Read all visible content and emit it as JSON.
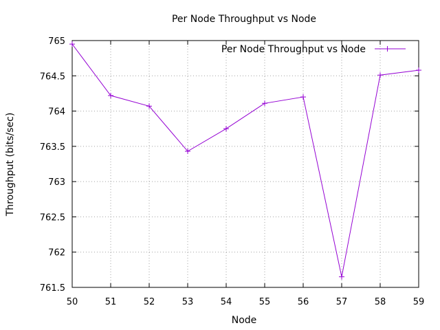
{
  "chart_data": {
    "type": "line",
    "title": "Per Node Throughput vs Node",
    "xlabel": "Node",
    "ylabel": "Throughput (bits/sec)",
    "xlim": [
      50,
      59
    ],
    "ylim": [
      761.5,
      765
    ],
    "x_ticks": [
      "50",
      "51",
      "52",
      "53",
      "54",
      "55",
      "56",
      "57",
      "58",
      "59"
    ],
    "y_ticks": [
      "765",
      "764.5",
      "764",
      "763.5",
      "763",
      "762.5",
      "762",
      "761.5"
    ],
    "grid": true,
    "legend_position": "top-right",
    "series": [
      {
        "name": "Per Node Throughput vs Node",
        "color": "#9400d3",
        "marker": "plus",
        "x": [
          50,
          51,
          52,
          53,
          54,
          55,
          56,
          57,
          58,
          59
        ],
        "y": [
          764.95,
          764.22,
          764.07,
          763.43,
          763.75,
          764.11,
          764.2,
          761.65,
          764.51,
          764.58
        ]
      }
    ]
  }
}
